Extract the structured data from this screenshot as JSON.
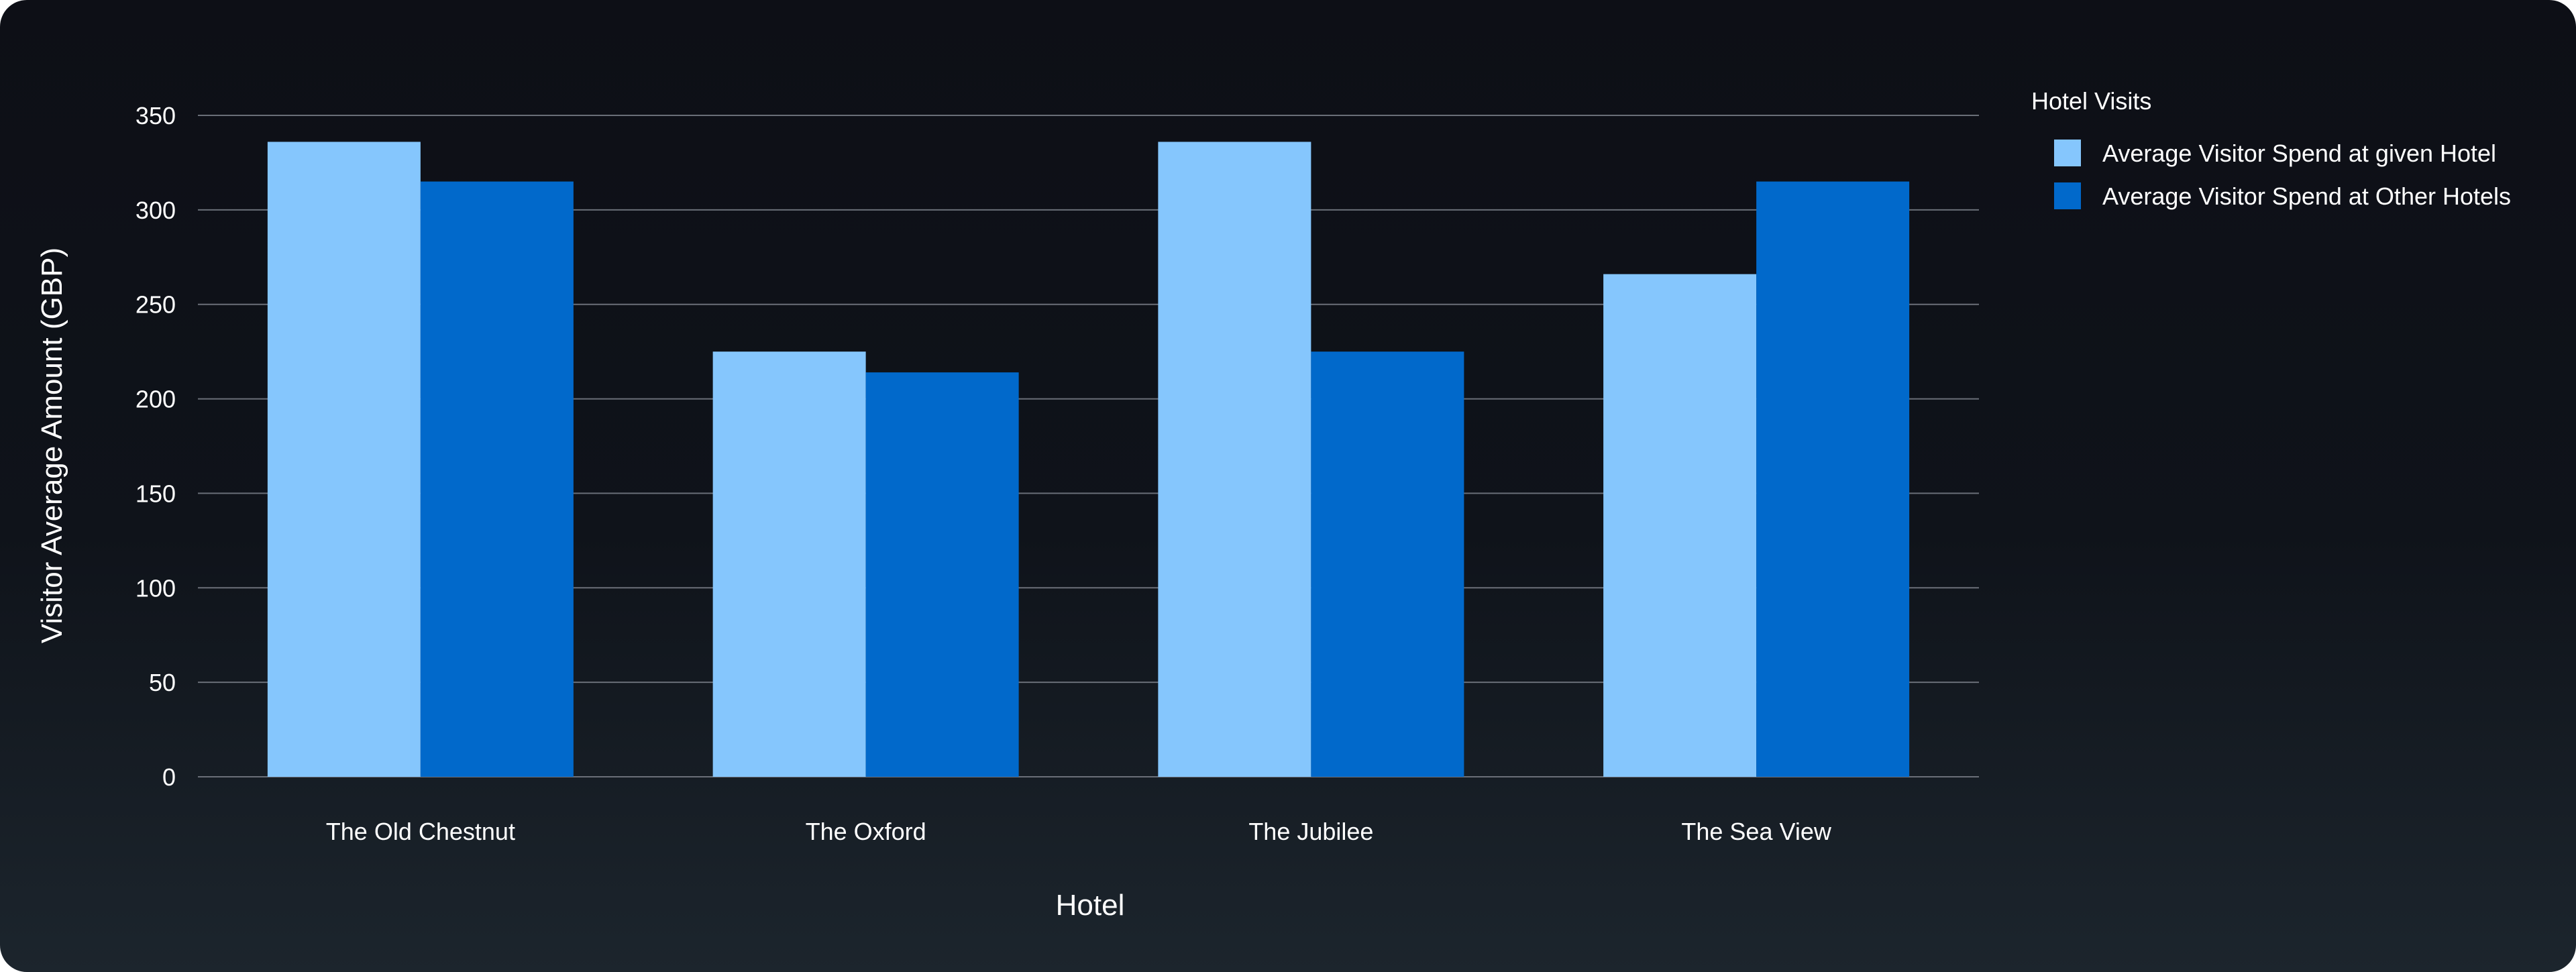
{
  "chart_data": {
    "type": "bar",
    "categories": [
      "The Old Chestnut",
      "The Oxford",
      "The Jubilee",
      "The Sea View"
    ],
    "series": [
      {
        "name": "Average Visitor Spend at given Hotel",
        "values": [
          336,
          225,
          336,
          266
        ],
        "color": "#85c6fd"
      },
      {
        "name": "Average Visitor Spend at Other Hotels",
        "values": [
          315,
          214,
          225,
          315
        ],
        "color": "#0169cb"
      }
    ],
    "xlabel": "Hotel",
    "ylabel": "Visitor Average Amount (GBP)",
    "ylim": [
      0,
      350
    ],
    "yticks": [
      "0",
      "50",
      "100",
      "150",
      "200",
      "250",
      "300",
      "350"
    ],
    "grid": true,
    "legend": {
      "title": "Hotel Visits",
      "position": "right"
    }
  }
}
